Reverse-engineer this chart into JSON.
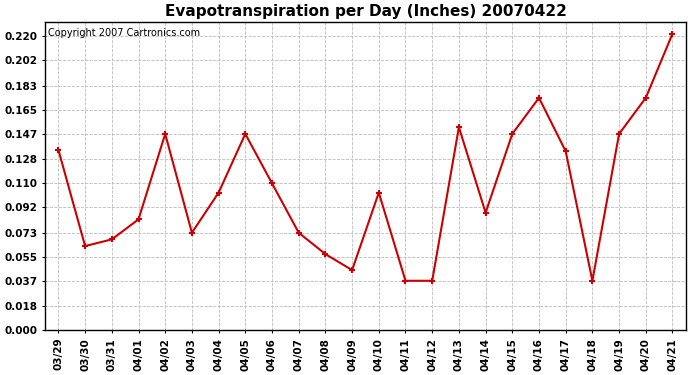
{
  "title": "Evapotranspiration per Day (Inches) 20070422",
  "copyright": "Copyright 2007 Cartronics.com",
  "x_labels": [
    "03/29",
    "03/30",
    "03/31",
    "04/01",
    "04/02",
    "04/03",
    "04/04",
    "04/05",
    "04/06",
    "04/07",
    "04/08",
    "04/09",
    "04/10",
    "04/11",
    "04/12",
    "04/13",
    "04/14",
    "04/15",
    "04/16",
    "04/17",
    "04/18",
    "04/19",
    "04/20",
    "04/21"
  ],
  "y_values": [
    0.135,
    0.063,
    0.068,
    0.083,
    0.147,
    0.073,
    0.103,
    0.147,
    0.11,
    0.073,
    0.057,
    0.045,
    0.103,
    0.037,
    0.037,
    0.152,
    0.088,
    0.147,
    0.174,
    0.134,
    0.037,
    0.147,
    0.174,
    0.222
  ],
  "line_color": "#cc0000",
  "marker": "+",
  "marker_size": 5,
  "background_color": "#ffffff",
  "grid_color": "#bbbbbb",
  "ylim": [
    0.0,
    0.231
  ],
  "yticks": [
    0.0,
    0.018,
    0.037,
    0.055,
    0.073,
    0.092,
    0.11,
    0.128,
    0.147,
    0.165,
    0.183,
    0.202,
    0.22
  ],
  "title_fontsize": 11,
  "tick_fontsize": 7.5,
  "copyright_fontsize": 7
}
